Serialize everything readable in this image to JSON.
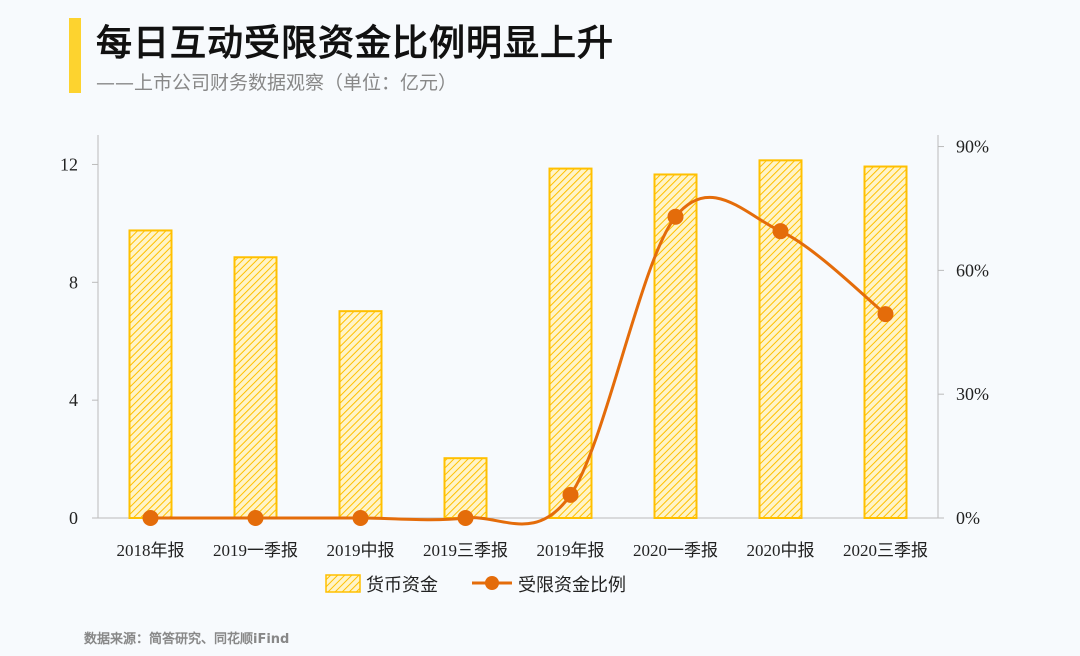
{
  "header": {
    "title": "每日互动受限资金比例明显上升",
    "subtitle": "——上市公司财务数据观察（单位：亿元）"
  },
  "footer": {
    "source": "数据来源：简答研究、同花顺iFind"
  },
  "colors": {
    "accent": "#fdd32f",
    "bar": "#ffc000",
    "line": "#e46c0a"
  },
  "chart_data": {
    "type": "bar+line",
    "categories": [
      "2018年报",
      "2019一季报",
      "2019中报",
      "2019三季报",
      "2019年报",
      "2020一季报",
      "2020中报",
      "2020三季报"
    ],
    "series": [
      {
        "name": "货币资金",
        "type": "bar",
        "axis": "left",
        "values": [
          9.76,
          8.85,
          7.02,
          2.03,
          11.86,
          11.66,
          12.14,
          11.93
        ]
      },
      {
        "name": "受限资金比例",
        "type": "line",
        "axis": "right",
        "values": [
          0,
          0,
          0,
          0,
          0.056,
          0.73,
          0.695,
          0.494
        ]
      }
    ],
    "left_axis": {
      "ticks": [
        0,
        4,
        8,
        12
      ],
      "tick_labels": [
        "0",
        "4",
        "8",
        "12"
      ],
      "ylim": [
        0,
        13
      ]
    },
    "right_axis": {
      "ticks": [
        0,
        0.3,
        0.6,
        0.9
      ],
      "tick_labels": [
        "0%",
        "30%",
        "60%",
        "90%"
      ],
      "ylim": [
        0,
        0.928
      ]
    },
    "legend": {
      "placement": "bottom",
      "entries": [
        "货币资金",
        "受限资金比例"
      ]
    },
    "grid": false
  }
}
